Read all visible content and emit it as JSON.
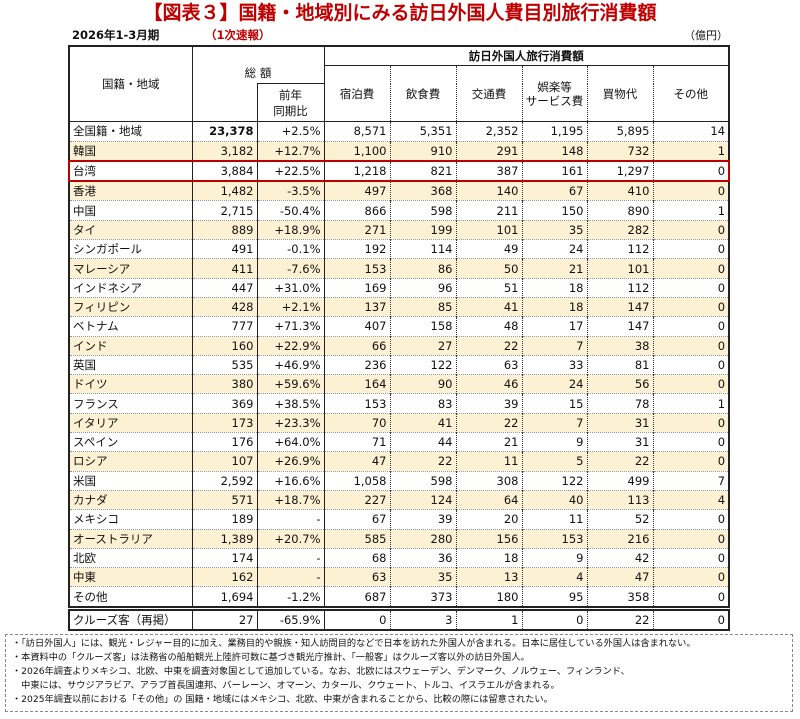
{
  "title": "【図表３】国籍・地域別にみる訪日外国人費目別旅行消費額",
  "period": "2026年1-3月期",
  "flash": "（1次速報）",
  "unit": "（億円）",
  "headers": {
    "region": "国籍・地域",
    "total": "総 額",
    "group": "訪日外国人旅行消費額",
    "yoy": "前年\n同期比",
    "cols": [
      "宿泊費",
      "飲食費",
      "交通費",
      "娯楽等\nサービス費",
      "買物代",
      "その他"
    ]
  },
  "highlight_color": "#c00000",
  "rows": [
    [
      "全国籍・地域",
      "23,378",
      "+2.5%",
      "8,571",
      "5,351",
      "2,352",
      "1,195",
      "5,895",
      "14"
    ],
    [
      "韓国",
      "3,182",
      "+12.7%",
      "1,100",
      "910",
      "291",
      "148",
      "732",
      "1"
    ],
    [
      "台湾",
      "3,884",
      "+22.5%",
      "1,218",
      "821",
      "387",
      "161",
      "1,297",
      "0"
    ],
    [
      "香港",
      "1,482",
      "-3.5%",
      "497",
      "368",
      "140",
      "67",
      "410",
      "0"
    ],
    [
      "中国",
      "2,715",
      "-50.4%",
      "866",
      "598",
      "211",
      "150",
      "890",
      "1"
    ],
    [
      "タイ",
      "889",
      "+18.9%",
      "271",
      "199",
      "101",
      "35",
      "282",
      "0"
    ],
    [
      "シンガポール",
      "491",
      "-0.1%",
      "192",
      "114",
      "49",
      "24",
      "112",
      "0"
    ],
    [
      "マレーシア",
      "411",
      "-7.6%",
      "153",
      "86",
      "50",
      "21",
      "101",
      "0"
    ],
    [
      "インドネシア",
      "447",
      "+31.0%",
      "169",
      "96",
      "51",
      "18",
      "112",
      "0"
    ],
    [
      "フィリピン",
      "428",
      "+2.1%",
      "137",
      "85",
      "41",
      "18",
      "147",
      "0"
    ],
    [
      "ベトナム",
      "777",
      "+71.3%",
      "407",
      "158",
      "48",
      "17",
      "147",
      "0"
    ],
    [
      "インド",
      "160",
      "+22.9%",
      "66",
      "27",
      "22",
      "7",
      "38",
      "0"
    ],
    [
      "英国",
      "535",
      "+46.9%",
      "236",
      "122",
      "63",
      "33",
      "81",
      "0"
    ],
    [
      "ドイツ",
      "380",
      "+59.6%",
      "164",
      "90",
      "46",
      "24",
      "56",
      "0"
    ],
    [
      "フランス",
      "369",
      "+38.5%",
      "153",
      "83",
      "39",
      "15",
      "78",
      "1"
    ],
    [
      "イタリア",
      "173",
      "+23.3%",
      "70",
      "41",
      "22",
      "7",
      "31",
      "0"
    ],
    [
      "スペイン",
      "176",
      "+64.0%",
      "71",
      "44",
      "21",
      "9",
      "31",
      "0"
    ],
    [
      "ロシア",
      "107",
      "+26.9%",
      "47",
      "22",
      "11",
      "5",
      "22",
      "0"
    ],
    [
      "米国",
      "2,592",
      "+16.6%",
      "1,058",
      "598",
      "308",
      "122",
      "499",
      "7"
    ],
    [
      "カナダ",
      "571",
      "+18.7%",
      "227",
      "124",
      "64",
      "40",
      "113",
      "4"
    ],
    [
      "メキシコ",
      "189",
      "-",
      "67",
      "39",
      "20",
      "11",
      "52",
      "0"
    ],
    [
      "オーストラリア",
      "1,389",
      "+20.7%",
      "585",
      "280",
      "156",
      "153",
      "216",
      "0"
    ],
    [
      "北欧",
      "174",
      "-",
      "68",
      "36",
      "18",
      "9",
      "42",
      "0"
    ],
    [
      "中東",
      "162",
      "-",
      "63",
      "35",
      "13",
      "4",
      "47",
      "0"
    ],
    [
      "その他",
      "1,694",
      "-1.2%",
      "687",
      "373",
      "180",
      "95",
      "358",
      "0"
    ]
  ],
  "cruise": [
    "クルーズ客（再掲）",
    "27",
    "-65.9%",
    "0",
    "3",
    "1",
    "0",
    "22",
    "0"
  ],
  "notes": [
    "・「訪日外国人」には、観光・レジャー目的に加え、業務目的や親族・知人訪問目的などで日本を訪れた外国人が含まれる。日本に居住している外国人は含まれない。",
    "・本資料中の「クルーズ客」は法務省の船舶観光上陸許可数に基づき観光庁推計、「一般客」はクルーズ客以外の訪日外国人。",
    "・2026年調査よりメキシコ、北欧、中東を調査対象国として追加している。なお、北欧にはスウェーデン、デンマーク、ノルウェー、フィンランド、",
    "　中東には、サウジアラビア、アラブ首長国連邦、バーレーン、オマーン、カタール、クウェート、トルコ、イスラエルが含まれる。",
    "・2025年調査以前における「その他」の 国籍・地域にはメキシコ、北欧、中東が含まれることから、比較の際には留意されたい。"
  ]
}
